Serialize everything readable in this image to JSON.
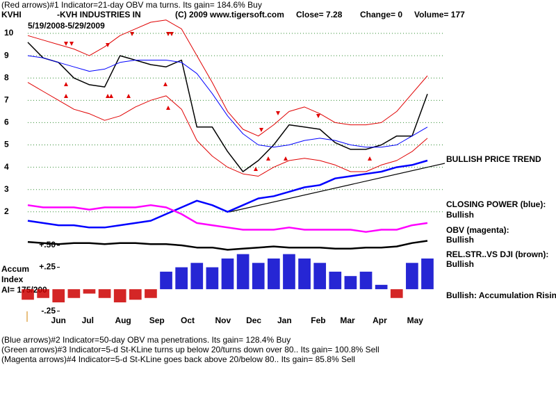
{
  "header": {
    "line1": "(Red arrows)#1 Indicator=21-day OBV ma turns. Its gain= 184.6% Buy",
    "symbol": "KVHI",
    "company": "-KVH INDUSTRIES IN",
    "copyright": "(C) 2009 www.tigersoft.com",
    "close": "Close=  7.28",
    "change": "Change= 0",
    "volume": "Volume= 177",
    "dates": "5/19/2008-5/29/2009"
  },
  "chart_data": [
    {
      "type": "line",
      "xlim": [
        0,
        26
      ],
      "ylim": [
        0,
        10.3
      ],
      "yticks": [
        2,
        3,
        4,
        5,
        6,
        7,
        8,
        9,
        10
      ],
      "grid": true,
      "grid_color": "#2e8b2e",
      "xticks": [
        {
          "value": 2.0,
          "label": "Jun"
        },
        {
          "value": 3.9,
          "label": "Jul"
        },
        {
          "value": 6.2,
          "label": "Aug"
        },
        {
          "value": 8.4,
          "label": "Sep"
        },
        {
          "value": 10.4,
          "label": "Oct"
        },
        {
          "value": 12.7,
          "label": "Nov"
        },
        {
          "value": 14.7,
          "label": "Dec"
        },
        {
          "value": 16.7,
          "label": "Jan"
        },
        {
          "value": 18.9,
          "label": "Feb"
        },
        {
          "value": 20.8,
          "label": "Mar"
        },
        {
          "value": 22.9,
          "label": "Apr"
        },
        {
          "value": 25.2,
          "label": "May"
        }
      ],
      "series": [
        {
          "name": "Price",
          "color": "#000000",
          "width": 1.5,
          "values": [
            9.6,
            8.9,
            8.7,
            8.0,
            7.7,
            7.6,
            9.0,
            8.8,
            8.6,
            8.5,
            8.8,
            5.8,
            5.8,
            4.7,
            3.8,
            4.3,
            5.0,
            5.9,
            5.8,
            5.7,
            5.1,
            4.8,
            4.8,
            5.0,
            5.4,
            5.4,
            7.28
          ]
        },
        {
          "color": "#e00000",
          "width": 1,
          "values": [
            9.9,
            9.7,
            9.5,
            9.3,
            9.0,
            9.4,
            9.9,
            10.2,
            10.5,
            10.6,
            10.2,
            9.0,
            7.8,
            6.5,
            5.7,
            5.4,
            5.9,
            6.5,
            6.7,
            6.4,
            6.0,
            5.9,
            5.9,
            6.0,
            6.5,
            7.3,
            8.1
          ]
        },
        {
          "color": "#e00000",
          "width": 1,
          "values": [
            7.8,
            7.4,
            7.0,
            6.6,
            6.4,
            6.1,
            6.3,
            6.7,
            7.0,
            7.2,
            6.6,
            5.2,
            4.5,
            4.0,
            3.7,
            3.6,
            4.0,
            4.3,
            4.4,
            4.3,
            4.1,
            3.8,
            3.8,
            4.1,
            4.3,
            4.7,
            5.3
          ]
        },
        {
          "color": "#0000ff",
          "width": 1,
          "values": [
            9.0,
            8.9,
            8.7,
            8.5,
            8.3,
            8.4,
            8.7,
            8.8,
            8.8,
            8.8,
            8.7,
            8.2,
            7.3,
            6.3,
            5.5,
            5.0,
            4.9,
            5.0,
            5.2,
            5.3,
            5.2,
            5.0,
            4.9,
            4.9,
            5.0,
            5.4,
            5.8
          ]
        },
        {
          "color": "#0000ff",
          "width": 2.5,
          "values": [
            1.6,
            1.5,
            1.4,
            1.4,
            1.3,
            1.3,
            1.4,
            1.5,
            1.6,
            1.9,
            2.2,
            2.5,
            2.3,
            2.0,
            2.3,
            2.6,
            2.7,
            2.9,
            3.1,
            3.2,
            3.5,
            3.6,
            3.7,
            3.8,
            4.0,
            4.1,
            4.3
          ]
        },
        {
          "color": "#ff00ff",
          "width": 2.5,
          "values": [
            2.3,
            2.2,
            2.2,
            2.2,
            2.1,
            2.2,
            2.2,
            2.2,
            2.3,
            2.2,
            1.9,
            1.5,
            1.4,
            1.3,
            1.2,
            1.2,
            1.2,
            1.3,
            1.2,
            1.2,
            1.2,
            1.2,
            1.1,
            1.2,
            1.2,
            1.4,
            1.5
          ]
        },
        {
          "color": "#000000",
          "width": 2.5,
          "values": [
            0.65,
            0.6,
            0.55,
            0.6,
            0.6,
            0.55,
            0.6,
            0.6,
            0.55,
            0.55,
            0.5,
            0.4,
            0.4,
            0.3,
            0.35,
            0.4,
            0.45,
            0.4,
            0.4,
            0.4,
            0.35,
            0.35,
            0.4,
            0.4,
            0.45,
            0.6,
            0.7
          ]
        }
      ]
    },
    {
      "type": "bar",
      "title": "Accum",
      "subtitle": "Index",
      "note": "AI= 175/200",
      "xlim": [
        0,
        26
      ],
      "ylim": [
        -0.3,
        0.55
      ],
      "yticks": [
        {
          "value": 0.5,
          "label": "+.50"
        },
        {
          "value": 0.25,
          "label": "+.25"
        },
        {
          "value": -0.25,
          "label": "-.25"
        }
      ],
      "color": "#0000cc",
      "negative_color": "#cc0000",
      "values": [
        -0.12,
        -0.1,
        -0.15,
        -0.1,
        -0.05,
        -0.1,
        -0.15,
        -0.12,
        -0.1,
        0.2,
        0.25,
        0.3,
        0.25,
        0.35,
        0.4,
        0.3,
        0.35,
        0.4,
        0.35,
        0.3,
        0.2,
        0.15,
        0.2,
        0.05,
        -0.1,
        0.3,
        0.35
      ]
    }
  ],
  "annotations": {
    "trend": "BULLISH PRICE TREND",
    "cp_label": "CLOSING POWER (blue):",
    "cp_value": "Bullish",
    "obv_label": "OBV (magenta):",
    "obv_value": "Bullish",
    "rs_label": "REL.STR..VS DJI (brown):",
    "rs_value": "Bullish",
    "accum": "Bullish: Accumulation Rising"
  },
  "footer": [
    "(Blue arrows)#2 Indicator=50-day OBV ma penetrations. Its gain= 128.4% Buy",
    "(Green arrows)#3 Indicator=5-d St-KLine turns up below 20/turns down over 80.. Its gain= 100.8% Sell",
    "(Magenta arrows)#4 Indicator=5-d St-KLine goes back above 20/below 80.. Its gain= 85.8% Sell"
  ]
}
